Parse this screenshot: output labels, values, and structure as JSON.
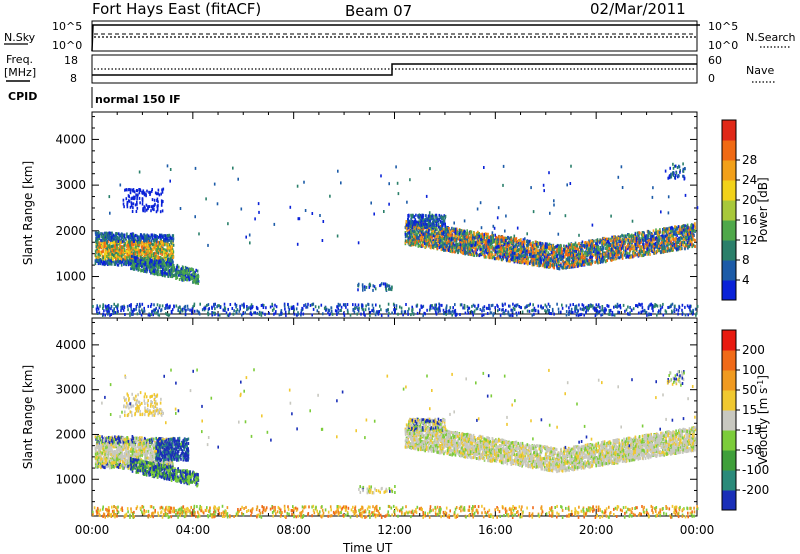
{
  "header": {
    "station": "Fort Hays East (fitACF)",
    "beam": "Beam 07",
    "date": "02/Mar/2011"
  },
  "noise_panel": {
    "left_label": "N.Sky",
    "left_ticks": [
      "10^5",
      "10^0"
    ],
    "right_label": "N.Search",
    "right_ticks": [
      "10^5",
      "10^0"
    ]
  },
  "freq_panel": {
    "left_label_1": "Freq.",
    "left_label_2": "[MHz]",
    "left_ticks": [
      "18",
      "8"
    ],
    "right_label": "Nave",
    "right_ticks": [
      "60",
      "0"
    ]
  },
  "cpid": {
    "label": "CPID",
    "mode": "normal 150 IF"
  },
  "chart_data": [
    {
      "type": "heatmap",
      "name": "power",
      "ylabel": "Slant Range [km]",
      "yticks": [
        1000,
        2000,
        3000,
        4000
      ],
      "ylim": [
        180,
        4600
      ],
      "xlim": [
        0,
        24
      ],
      "xlabel": "",
      "colorbar": {
        "label": "Power [dB]",
        "ticks": [
          "4",
          "8",
          "12",
          "16",
          "20",
          "24",
          "28"
        ],
        "colors": [
          "#0a22d8",
          "#1c5ba8",
          "#2a7f6a",
          "#4fa84a",
          "#a8c83a",
          "#f2d21a",
          "#f2a01a",
          "#f06a14",
          "#e02818"
        ]
      }
    },
    {
      "type": "heatmap",
      "name": "velocity",
      "ylabel": "Slant Range [km]",
      "yticks": [
        1000,
        2000,
        3000,
        4000
      ],
      "ylim": [
        180,
        4600
      ],
      "xlim": [
        0,
        24
      ],
      "xlabel": "Time UT",
      "xticks": [
        "00:00",
        "04:00",
        "08:00",
        "12:00",
        "16:00",
        "20:00",
        "00:00"
      ],
      "colorbar": {
        "label": "Velocity [m s",
        "label_sup": "-1",
        "label_end": "]",
        "ticks": [
          "200",
          "100",
          "50",
          "15",
          "-15",
          "-50",
          "-100",
          "-200"
        ],
        "colors": [
          "#1a2fb8",
          "#2a8a7a",
          "#3f9f3a",
          "#7ccc3a",
          "#c8c8c0",
          "#f0c830",
          "#f09a20",
          "#f06a18",
          "#e81a10"
        ]
      }
    }
  ]
}
